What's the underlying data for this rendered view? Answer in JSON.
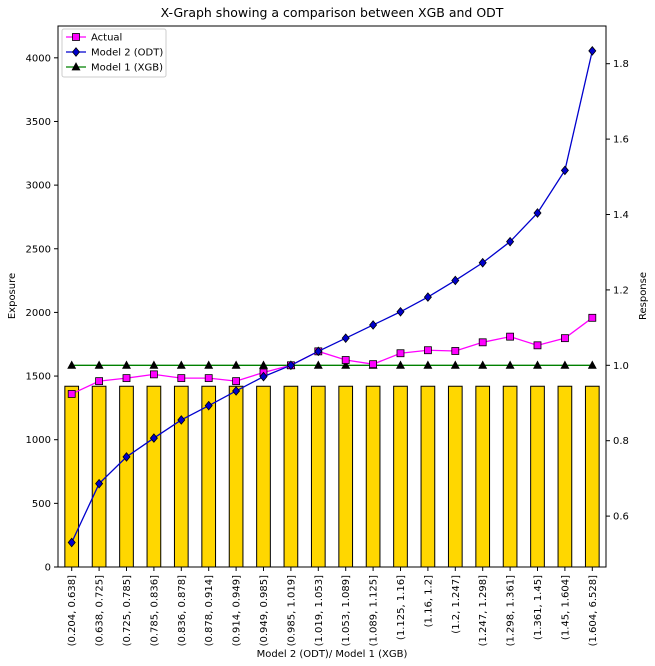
{
  "chart_data": {
    "type": "bar",
    "title": "X-Graph showing a comparison between XGB and ODT",
    "xlabel": "Model 2 (ODT)/ Model 1 (XGB)",
    "ylabel_left": "Exposure",
    "ylabel_right": "Response",
    "categories": [
      "(0.204, 0.638]",
      "(0.638, 0.725]",
      "(0.725, 0.785]",
      "(0.785, 0.836]",
      "(0.836, 0.878]",
      "(0.878, 0.914]",
      "(0.914, 0.949]",
      "(0.949, 0.985]",
      "(0.985, 1.019]",
      "(1.019, 1.053]",
      "(1.053, 1.089]",
      "(1.089, 1.125]",
      "(1.125, 1.16]",
      "(1.16, 1.2]",
      "(1.2, 1.247]",
      "(1.247, 1.298]",
      "(1.298, 1.361]",
      "(1.361, 1.45]",
      "(1.45, 1.604]",
      "(1.604, 6.528]"
    ],
    "bars": {
      "name": "Exposure",
      "values": [
        1420,
        1420,
        1420,
        1420,
        1420,
        1420,
        1420,
        1420,
        1420,
        1420,
        1420,
        1420,
        1420,
        1420,
        1420,
        1420,
        1420,
        1420,
        1420,
        1420
      ],
      "color": "#FFD700"
    },
    "left_axis": {
      "ylim": [
        0,
        4250
      ],
      "ticks": [
        0,
        500,
        1000,
        1500,
        2000,
        2500,
        3000,
        3500,
        4000
      ]
    },
    "right_axis": {
      "ylim": [
        0.465,
        1.9
      ],
      "ticks": [
        0.6,
        0.8,
        1.0,
        1.2,
        1.4,
        1.6,
        1.8
      ],
      "tick_labels": [
        "0.6",
        "0.8",
        "1.0",
        "1.2",
        "1.4",
        "1.6",
        "1.8"
      ]
    },
    "series": [
      {
        "name": "Actual",
        "axis": "right",
        "marker": "square",
        "color": "#FF00FF",
        "marker_fill": "#FF00FF",
        "values": [
          0.924,
          0.958,
          0.966,
          0.976,
          0.966,
          0.966,
          0.958,
          0.981,
          1.0,
          1.037,
          1.014,
          1.003,
          1.032,
          1.04,
          1.038,
          1.061,
          1.076,
          1.053,
          1.072,
          1.126
        ]
      },
      {
        "name": "Model 2 (ODT)",
        "axis": "right",
        "marker": "diamond",
        "color": "#0000CD",
        "marker_fill": "#0000CD",
        "values": [
          0.53,
          0.686,
          0.757,
          0.807,
          0.855,
          0.893,
          0.932,
          0.97,
          1.0,
          1.037,
          1.072,
          1.107,
          1.142,
          1.181,
          1.225,
          1.272,
          1.328,
          1.404,
          1.517,
          1.834
        ]
      },
      {
        "name": "Model 1 (XGB)",
        "axis": "right",
        "marker": "triangle",
        "color": "#008000",
        "marker_fill": "#000000",
        "values": [
          1.0,
          1.0,
          1.0,
          1.0,
          1.0,
          1.0,
          1.0,
          1.0,
          1.0,
          1.0,
          1.0,
          1.0,
          1.0,
          1.0,
          1.0,
          1.0,
          1.0,
          1.0,
          1.0,
          1.0
        ]
      }
    ],
    "legend_position": "upper-left",
    "grid": false
  }
}
